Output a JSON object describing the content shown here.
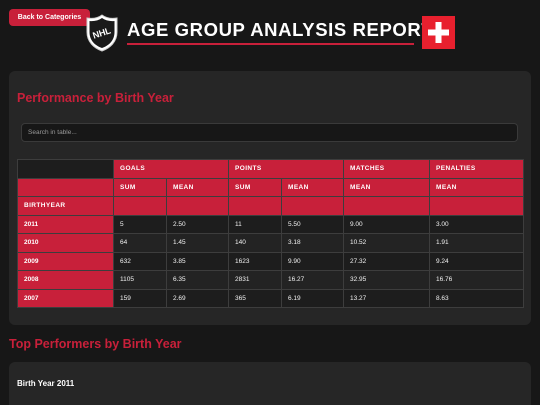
{
  "header": {
    "back_label": "Back to Categories",
    "title": "AGE GROUP ANALYSIS REPORT",
    "logo_text": "NHL",
    "accent_color": "#c8203a"
  },
  "performance": {
    "title": "Performance by Birth Year",
    "search_placeholder": "Search in table...",
    "groups": [
      "GOALS",
      "POINTS",
      "MATCHES",
      "PENALTIES"
    ],
    "subheaders": [
      "SUM",
      "MEAN",
      "SUM",
      "MEAN",
      "MEAN",
      "MEAN"
    ],
    "row_header": "BIRTHYEAR",
    "rows": [
      {
        "year": "2011",
        "values": [
          "5",
          "2.50",
          "11",
          "5.50",
          "9.00",
          "3.00"
        ]
      },
      {
        "year": "2010",
        "values": [
          "64",
          "1.45",
          "140",
          "3.18",
          "10.52",
          "1.91"
        ]
      },
      {
        "year": "2009",
        "values": [
          "632",
          "3.85",
          "1623",
          "9.90",
          "27.32",
          "9.24"
        ]
      },
      {
        "year": "2008",
        "values": [
          "1105",
          "6.35",
          "2831",
          "16.27",
          "32.95",
          "16.76"
        ]
      },
      {
        "year": "2007",
        "values": [
          "159",
          "2.69",
          "365",
          "6.19",
          "13.27",
          "8.63"
        ]
      }
    ]
  },
  "top_performers": {
    "title": "Top Performers by Birth Year",
    "card_title": "Birth Year 2011"
  }
}
